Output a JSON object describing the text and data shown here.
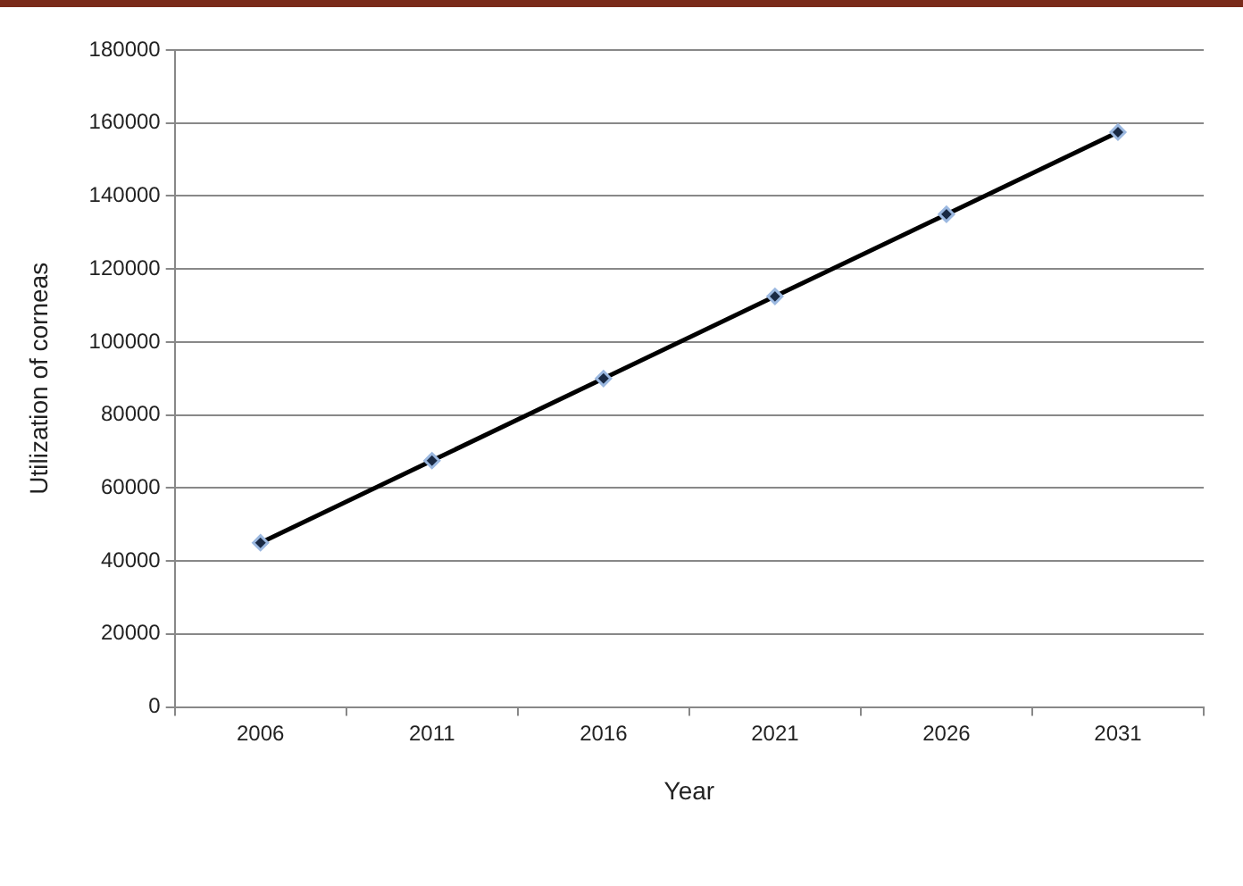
{
  "chart_data": {
    "type": "line",
    "xlabel": "Year",
    "ylabel": "Utilization of corneas",
    "categories": [
      "2006",
      "2011",
      "2016",
      "2021",
      "2026",
      "2031"
    ],
    "series": [
      {
        "color": "#000000",
        "values": [
          45000,
          67500,
          90000,
          112500,
          135000,
          157500
        ]
      }
    ],
    "ylim": [
      0,
      180000
    ],
    "yticks": [
      0,
      20000,
      40000,
      60000,
      80000,
      100000,
      120000,
      140000,
      160000,
      180000
    ],
    "grid": "y",
    "marker": "diamond",
    "line_style": "solid",
    "legend": false
  }
}
